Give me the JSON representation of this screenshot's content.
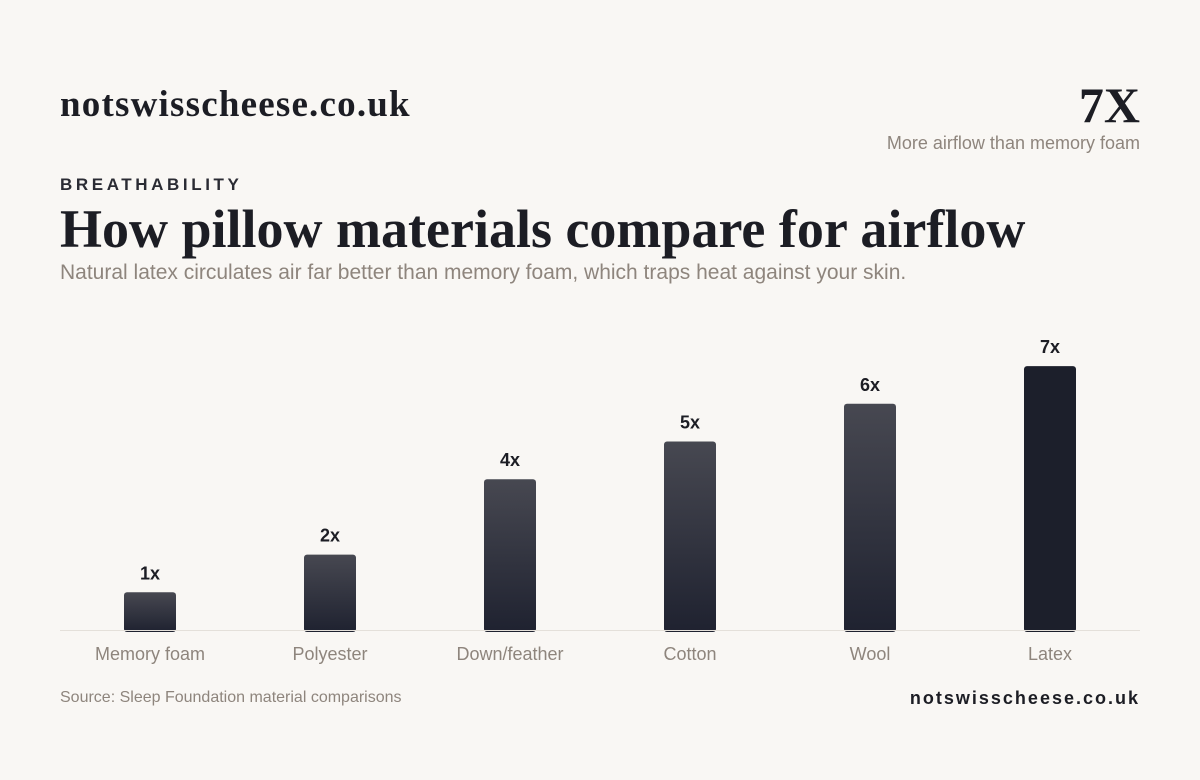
{
  "brand": "notswisscheese.co.uk",
  "stat": {
    "value": "7X",
    "label": "More airflow than memory foam"
  },
  "eyebrow": "BREATHABILITY",
  "title": "How pillow materials compare for airflow",
  "subtitle": "Natural latex circulates air far better than memory foam, which traps heat against your skin.",
  "source": "Source: Sleep Foundation material comparisons",
  "footer_brand": "notswisscheese.co.uk",
  "colors": {
    "bar_light": "#474851",
    "bar_dark": "#1f2230",
    "highlight": "#1c1f2b",
    "axis": "#e4e0da",
    "muted_text": "#8e857d"
  },
  "chart_data": {
    "type": "bar",
    "title": "How pillow materials compare for airflow",
    "xlabel": "",
    "ylabel": "",
    "categories": [
      "Memory foam",
      "Polyester",
      "Down/feather",
      "Cotton",
      "Wool",
      "Latex"
    ],
    "values": [
      1,
      2,
      4,
      5,
      6,
      7
    ],
    "value_labels": [
      "1x",
      "2x",
      "4x",
      "5x",
      "6x",
      "7x"
    ],
    "ylim": [
      0,
      7
    ],
    "grid": false,
    "legend": "none"
  }
}
